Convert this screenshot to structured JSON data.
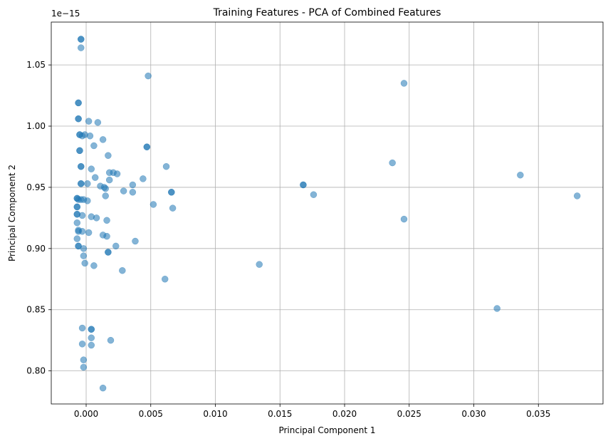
{
  "chart_data": {
    "type": "scatter",
    "title": "Training Features - PCA of Combined Features",
    "xlabel": "Principal Component 1",
    "ylabel": "Principal Component 2",
    "y_offset_text": "1e−15",
    "xlim": [
      -0.0027,
      0.04
    ],
    "ylim": [
      0.773,
      1.085
    ],
    "x_ticks": [
      0.0,
      0.005,
      0.01,
      0.015,
      0.02,
      0.025,
      0.03,
      0.035
    ],
    "x_tick_labels": [
      "0.000",
      "0.005",
      "0.010",
      "0.015",
      "0.020",
      "0.025",
      "0.030",
      "0.035"
    ],
    "y_ticks": [
      0.8,
      0.85,
      0.9,
      0.95,
      1.0,
      1.05
    ],
    "y_tick_labels": [
      "0.80",
      "0.85",
      "0.90",
      "0.95",
      "1.00",
      "1.05"
    ],
    "grid": true,
    "marker_color": "#1f77b4",
    "marker_alpha": 0.55,
    "points": [
      {
        "x": -0.0004,
        "y": 1.071
      },
      {
        "x": -0.0004,
        "y": 1.071
      },
      {
        "x": -0.0004,
        "y": 1.064
      },
      {
        "x": -0.0006,
        "y": 1.019
      },
      {
        "x": -0.0006,
        "y": 1.019
      },
      {
        "x": -0.0006,
        "y": 1.006
      },
      {
        "x": -0.0006,
        "y": 1.006
      },
      {
        "x": -0.0005,
        "y": 0.993
      },
      {
        "x": -0.0005,
        "y": 0.993
      },
      {
        "x": -0.0003,
        "y": 0.992
      },
      {
        "x": -0.0005,
        "y": 0.98
      },
      {
        "x": -0.0005,
        "y": 0.98
      },
      {
        "x": -0.0004,
        "y": 0.967
      },
      {
        "x": -0.0004,
        "y": 0.967
      },
      {
        "x": -0.0004,
        "y": 0.953
      },
      {
        "x": -0.0004,
        "y": 0.953
      },
      {
        "x": -0.0007,
        "y": 0.941
      },
      {
        "x": -0.0007,
        "y": 0.941
      },
      {
        "x": -0.0006,
        "y": 0.94
      },
      {
        "x": -0.0004,
        "y": 0.94
      },
      {
        "x": -0.0002,
        "y": 0.94
      },
      {
        "x": -0.0007,
        "y": 0.934
      },
      {
        "x": -0.0007,
        "y": 0.934
      },
      {
        "x": -0.0007,
        "y": 0.928
      },
      {
        "x": -0.0007,
        "y": 0.928
      },
      {
        "x": -0.0003,
        "y": 0.927
      },
      {
        "x": -0.0007,
        "y": 0.921
      },
      {
        "x": -0.0006,
        "y": 0.915
      },
      {
        "x": -0.0006,
        "y": 0.914
      },
      {
        "x": -0.0007,
        "y": 0.908
      },
      {
        "x": -0.0006,
        "y": 0.902
      },
      {
        "x": -0.0006,
        "y": 0.902
      },
      {
        "x": -0.0003,
        "y": 0.914
      },
      {
        "x": -0.0002,
        "y": 0.9
      },
      {
        "x": -0.0002,
        "y": 0.894
      },
      {
        "x": -0.0001,
        "y": 0.888
      },
      {
        "x": -0.0001,
        "y": 0.993
      },
      {
        "x": 0.0001,
        "y": 0.953
      },
      {
        "x": 0.0001,
        "y": 0.939
      },
      {
        "x": 0.0002,
        "y": 1.004
      },
      {
        "x": 0.0002,
        "y": 0.913
      },
      {
        "x": 0.0003,
        "y": 0.992
      },
      {
        "x": 0.0004,
        "y": 0.965
      },
      {
        "x": 0.0004,
        "y": 0.926
      },
      {
        "x": 0.0006,
        "y": 0.984
      },
      {
        "x": 0.0006,
        "y": 0.886
      },
      {
        "x": 0.0007,
        "y": 0.958
      },
      {
        "x": 0.0008,
        "y": 0.925
      },
      {
        "x": 0.0009,
        "y": 1.003
      },
      {
        "x": 0.0011,
        "y": 0.951
      },
      {
        "x": 0.0013,
        "y": 0.911
      },
      {
        "x": 0.0013,
        "y": 0.989
      },
      {
        "x": 0.0014,
        "y": 0.95
      },
      {
        "x": 0.0015,
        "y": 0.943
      },
      {
        "x": 0.0015,
        "y": 0.949
      },
      {
        "x": 0.0016,
        "y": 0.923
      },
      {
        "x": 0.0016,
        "y": 0.91
      },
      {
        "x": 0.0017,
        "y": 0.897
      },
      {
        "x": 0.0017,
        "y": 0.897
      },
      {
        "x": 0.0017,
        "y": 0.976
      },
      {
        "x": 0.0018,
        "y": 0.962
      },
      {
        "x": 0.0018,
        "y": 0.956
      },
      {
        "x": 0.0021,
        "y": 0.962
      },
      {
        "x": 0.0023,
        "y": 0.902
      },
      {
        "x": 0.0024,
        "y": 0.961
      },
      {
        "x": 0.0028,
        "y": 0.882
      },
      {
        "x": 0.0029,
        "y": 0.947
      },
      {
        "x": 0.0036,
        "y": 0.952
      },
      {
        "x": 0.0036,
        "y": 0.946
      },
      {
        "x": 0.0038,
        "y": 0.906
      },
      {
        "x": 0.0044,
        "y": 0.957
      },
      {
        "x": 0.0047,
        "y": 0.983
      },
      {
        "x": 0.0047,
        "y": 0.983
      },
      {
        "x": 0.0048,
        "y": 1.041
      },
      {
        "x": 0.0052,
        "y": 0.936
      },
      {
        "x": 0.0061,
        "y": 0.875
      },
      {
        "x": 0.0062,
        "y": 0.967
      },
      {
        "x": 0.0066,
        "y": 0.946
      },
      {
        "x": 0.0066,
        "y": 0.946
      },
      {
        "x": 0.0067,
        "y": 0.933
      },
      {
        "x": -0.0003,
        "y": 0.835
      },
      {
        "x": -0.0003,
        "y": 0.822
      },
      {
        "x": -0.0002,
        "y": 0.809
      },
      {
        "x": -0.0002,
        "y": 0.803
      },
      {
        "x": 0.0004,
        "y": 0.834
      },
      {
        "x": 0.0004,
        "y": 0.834
      },
      {
        "x": 0.0004,
        "y": 0.827
      },
      {
        "x": 0.0004,
        "y": 0.821
      },
      {
        "x": 0.0019,
        "y": 0.825
      },
      {
        "x": 0.0013,
        "y": 0.786
      },
      {
        "x": 0.0134,
        "y": 0.887
      },
      {
        "x": 0.0168,
        "y": 0.952
      },
      {
        "x": 0.0168,
        "y": 0.952
      },
      {
        "x": 0.0176,
        "y": 0.944
      },
      {
        "x": 0.0237,
        "y": 0.97
      },
      {
        "x": 0.0246,
        "y": 1.035
      },
      {
        "x": 0.0246,
        "y": 0.924
      },
      {
        "x": 0.0318,
        "y": 0.851
      },
      {
        "x": 0.0336,
        "y": 0.96
      },
      {
        "x": 0.038,
        "y": 0.943
      }
    ]
  }
}
